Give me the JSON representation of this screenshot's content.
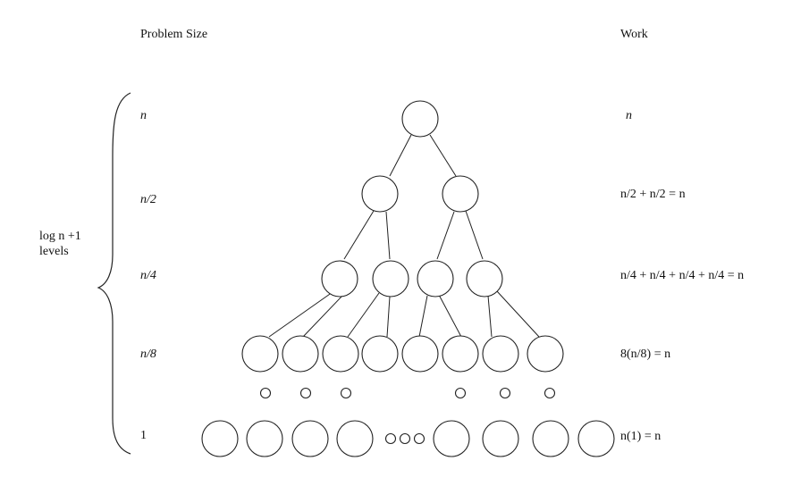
{
  "headers": {
    "problem_size": "Problem Size",
    "work": "Work"
  },
  "brace_label": {
    "line1": "log n +1",
    "line2": "levels"
  },
  "levels": [
    {
      "size": "n",
      "work": "n"
    },
    {
      "size": "n/2",
      "work": "n/2 + n/2 = n"
    },
    {
      "size": "n/4",
      "work": "n/4 + n/4 + n/4 + n/4 = n"
    },
    {
      "size": "n/8",
      "work": "8(n/8) = n"
    },
    {
      "size": "1",
      "work": "n(1) = n"
    }
  ]
}
